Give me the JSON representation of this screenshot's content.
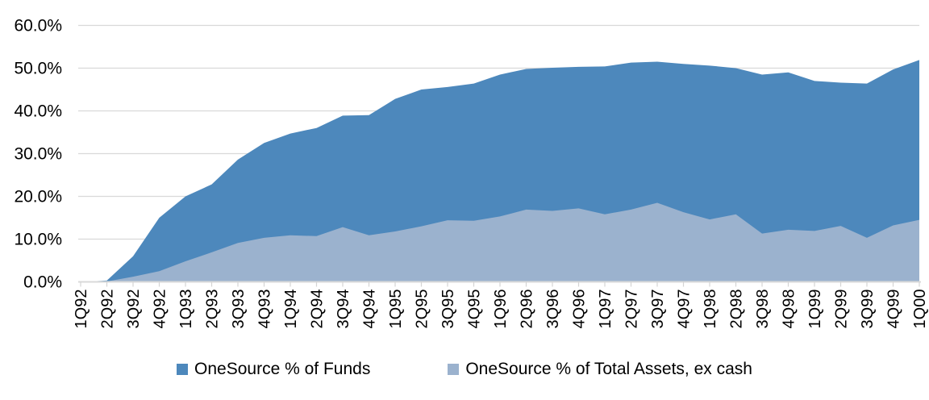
{
  "chart_data": {
    "type": "area",
    "title": "",
    "xlabel": "",
    "ylabel": "",
    "ylim": [
      0,
      60
    ],
    "grid": true,
    "legend_position": "bottom",
    "overlapping_series": true,
    "y_tick_labels": [
      "0.0%",
      "10.0%",
      "20.0%",
      "30.0%",
      "40.0%",
      "50.0%",
      "60.0%"
    ],
    "categories": [
      "1Q92",
      "2Q92",
      "3Q92",
      "4Q92",
      "1Q93",
      "2Q93",
      "3Q93",
      "4Q93",
      "1Q94",
      "2Q94",
      "3Q94",
      "4Q94",
      "1Q95",
      "2Q95",
      "3Q95",
      "4Q95",
      "1Q96",
      "2Q96",
      "3Q96",
      "4Q96",
      "1Q97",
      "2Q97",
      "3Q97",
      "4Q97",
      "1Q98",
      "2Q98",
      "3Q98",
      "4Q98",
      "1Q99",
      "2Q99",
      "3Q99",
      "4Q99",
      "1Q00"
    ],
    "series": [
      {
        "name": "OneSource % of Funds",
        "color": "#4D88BC",
        "values": [
          0,
          0.3,
          6.0,
          15.0,
          20.0,
          22.8,
          28.6,
          32.5,
          34.7,
          36.0,
          38.9,
          39.0,
          42.8,
          45.0,
          45.6,
          46.4,
          48.5,
          49.8,
          50.1,
          50.3,
          50.4,
          51.3,
          51.5,
          51.0,
          50.6,
          50.0,
          48.5,
          49.0,
          47.0,
          46.6,
          46.4,
          49.7,
          51.9
        ]
      },
      {
        "name": "OneSource % of Total Assets, ex cash",
        "color": "#9BB2CE",
        "values": [
          0,
          0.1,
          1.2,
          2.5,
          4.8,
          6.9,
          9.1,
          10.3,
          10.9,
          10.7,
          12.8,
          10.9,
          11.8,
          13.0,
          14.4,
          14.3,
          15.3,
          16.9,
          16.6,
          17.2,
          15.8,
          16.9,
          18.5,
          16.3,
          14.6,
          15.8,
          11.3,
          12.2,
          11.9,
          13.1,
          10.3,
          13.2,
          14.5
        ]
      }
    ]
  },
  "style": {
    "gridline_color": "#d9d9d9",
    "axis_color": "#d9d9d9",
    "tick_color": "#d4d4d4",
    "text_color": "#000000"
  }
}
